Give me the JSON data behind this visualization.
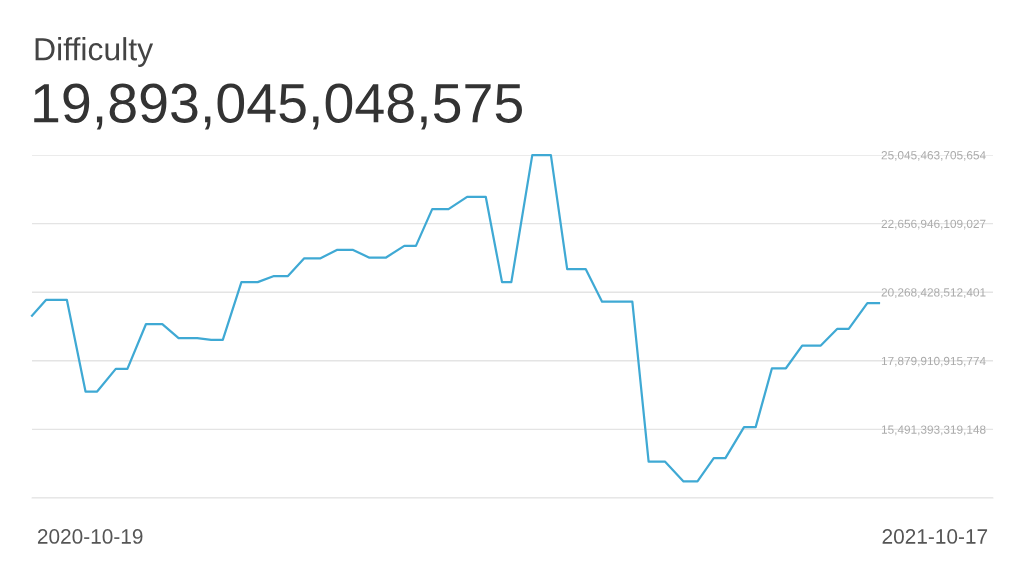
{
  "chart_data": {
    "type": "line",
    "title": "Difficulty",
    "subtitle": "19,893,045,048,575",
    "x": [
      "2020-09-24",
      "2020-09-30",
      "2020-10-09",
      "2020-10-17",
      "2020-10-22",
      "2020-10-30",
      "2020-11-04",
      "2020-11-12",
      "2020-11-19",
      "2020-11-26",
      "2020-12-04",
      "2020-12-10",
      "2020-12-15",
      "2020-12-23",
      "2020-12-30",
      "2021-01-06",
      "2021-01-12",
      "2021-01-19",
      "2021-01-26",
      "2021-02-02",
      "2021-02-09",
      "2021-02-16",
      "2021-02-23",
      "2021-03-03",
      "2021-03-08",
      "2021-03-15",
      "2021-03-22",
      "2021-03-30",
      "2021-04-07",
      "2021-04-14",
      "2021-04-18",
      "2021-04-27",
      "2021-05-05",
      "2021-05-12",
      "2021-05-20",
      "2021-05-27",
      "2021-06-09",
      "2021-06-16",
      "2021-06-23",
      "2021-07-01",
      "2021-07-07",
      "2021-07-14",
      "2021-07-19",
      "2021-07-27",
      "2021-08-01",
      "2021-08-08",
      "2021-08-14",
      "2021-08-21",
      "2021-08-29",
      "2021-09-05",
      "2021-09-10",
      "2021-09-18",
      "2021-09-23"
    ],
    "series": [
      {
        "color": "#3fa9d4",
        "values": [
          19450000000000,
          20000000000000,
          20000000000000,
          16810000000000,
          16810000000000,
          17600000000000,
          17600000000000,
          19160000000000,
          19160000000000,
          18670000000000,
          18670000000000,
          18610000000000,
          18610000000000,
          20620000000000,
          20620000000000,
          20830000000000,
          20830000000000,
          21450000000000,
          21450000000000,
          21740000000000,
          21740000000000,
          21470000000000,
          21470000000000,
          21880000000000,
          21880000000000,
          23160000000000,
          23160000000000,
          23590000000000,
          23590000000000,
          20620000000000,
          20620000000000,
          25040000000000,
          25040000000000,
          21070000000000,
          21070000000000,
          19940000000000,
          19940000000000,
          14370000000000,
          14370000000000,
          13680000000000,
          13680000000000,
          14490000000000,
          14490000000000,
          15570000000000,
          15570000000000,
          17620000000000,
          17620000000000,
          18410000000000,
          18410000000000,
          18990000000000,
          18990000000000,
          19890000000000,
          19890000000000
        ]
      }
    ],
    "xlim": [
      "2020-09-24",
      "2021-11-11"
    ],
    "xticks": [
      {
        "value": "2020-10-19",
        "label": "2020-10-19"
      },
      {
        "value": "2021-10-17",
        "label": "2021-10-17"
      }
    ],
    "ylim": [
      13102875722521,
      25045463705654
    ],
    "yticks": [
      {
        "value": 13102875722521,
        "label": null
      },
      {
        "value": 15491393319148,
        "label": "15,491,393,319,148"
      },
      {
        "value": 17879910915774,
        "label": "17,879,910,915,774"
      },
      {
        "value": 20268428512401,
        "label": "20,268,428,512,401"
      },
      {
        "value": 22656946109027,
        "label": "22,656,946,109,027"
      },
      {
        "value": 25045463705654,
        "label": "25,045,463,705,654"
      }
    ],
    "grid": "y",
    "legend": false,
    "marker": "none",
    "line_style": "solid"
  }
}
